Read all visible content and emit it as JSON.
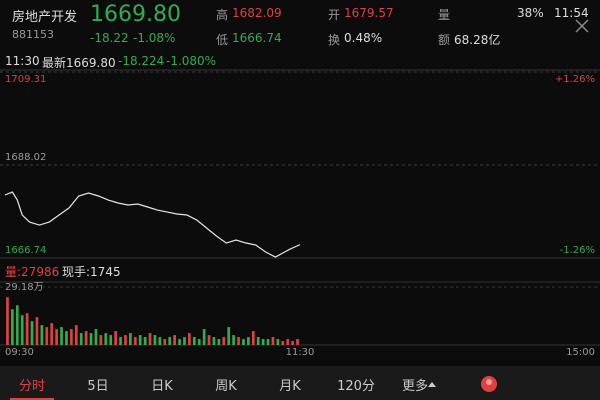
{
  "header": {
    "name": "房地产开发",
    "code": "881153",
    "price": "1669.80",
    "change": "-18.22",
    "change_pct": "-1.08%",
    "high_label": "高",
    "high": "1682.09",
    "low_label": "低",
    "low": "1666.74",
    "open_label": "开",
    "open": "1679.57",
    "turnover_label": "换",
    "turnover": "0.48%",
    "volume_label": "量",
    "amount_label": "额",
    "amount": "68.28亿"
  },
  "status_bar": {
    "battery": "38%",
    "time": "11:54"
  },
  "cursor": {
    "time": "11:30",
    "latest": "最新1669.80",
    "change": "-18.224",
    "change_pct": "-1.080%"
  },
  "volume_info": {
    "volume": "量:27986",
    "hand": "现手:1745"
  },
  "tabs": [
    "分时",
    "5日",
    "日K",
    "周K",
    "月K",
    "120分",
    "更多"
  ],
  "chart_data": [
    {
      "type": "line",
      "x": [
        0,
        3,
        5,
        7,
        10,
        14,
        18,
        22,
        26,
        30,
        34,
        38,
        42,
        46,
        50,
        54,
        58,
        62,
        66,
        70,
        74,
        78,
        82,
        86,
        90,
        94,
        98,
        102,
        106,
        110,
        113,
        116,
        120
      ],
      "series": [
        {
          "color": "#e6e6e6",
          "values": [
            1681.16,
            1681.84,
            1680.01,
            1676.58,
            1674.97,
            1674.29,
            1674.97,
            1676.58,
            1678.18,
            1680.93,
            1681.61,
            1680.93,
            1680.01,
            1679.33,
            1678.87,
            1679.09,
            1678.41,
            1677.72,
            1677.26,
            1676.81,
            1676.58,
            1675.43,
            1673.6,
            1671.77,
            1670.17,
            1670.85,
            1670.17,
            1669.71,
            1668.11,
            1666.96,
            1667.88,
            1668.79,
            1669.8
          ]
        }
      ],
      "xlim": [
        0,
        240
      ],
      "ylim": [
        1666.74,
        1709.31
      ],
      "yticks": [
        1666.74,
        1688.02,
        1709.31
      ],
      "y2lim": [
        -1.26,
        1.26
      ],
      "y2ticks": [
        {
          "value": -1.26,
          "label": "-1.26%"
        },
        {
          "value": 1.26,
          "label": "+1.26%"
        }
      ]
    },
    {
      "type": "bar",
      "x": [
        1,
        3,
        5,
        7,
        9,
        11,
        13,
        15,
        17,
        19,
        21,
        23,
        25,
        27,
        29,
        31,
        33,
        35,
        37,
        39,
        41,
        43,
        45,
        47,
        49,
        51,
        53,
        55,
        57,
        59,
        61,
        63,
        65,
        67,
        69,
        71,
        73,
        75,
        77,
        79,
        81,
        83,
        85,
        87,
        89,
        91,
        93,
        95,
        97,
        99,
        101,
        103,
        105,
        107,
        109,
        111,
        113,
        115,
        117,
        119
      ],
      "values": [
        24,
        18,
        20,
        15,
        16,
        12,
        14,
        10,
        9,
        11,
        8,
        9,
        7,
        8,
        10,
        6,
        7,
        6,
        8,
        5,
        6,
        5,
        7,
        4,
        5,
        6,
        4,
        5,
        4,
        6,
        5,
        4,
        3,
        4,
        5,
        3,
        4,
        6,
        4,
        3,
        8,
        5,
        4,
        3,
        4,
        9,
        5,
        4,
        3,
        4,
        7,
        4,
        3,
        3,
        4,
        3,
        2,
        3,
        2,
        3
      ],
      "directions": [
        "up",
        "down",
        "down",
        "down",
        "up",
        "down",
        "up",
        "down",
        "up",
        "up",
        "up",
        "down",
        "down",
        "up",
        "up",
        "down",
        "up",
        "down",
        "down",
        "up",
        "down",
        "down",
        "up",
        "down",
        "up",
        "down",
        "up",
        "down",
        "down",
        "up",
        "down",
        "down",
        "up",
        "down",
        "up",
        "down",
        "down",
        "up",
        "down",
        "down",
        "down",
        "up",
        "down",
        "down",
        "up",
        "down",
        "down",
        "up",
        "down",
        "down",
        "up",
        "down",
        "down",
        "down",
        "up",
        "down",
        "up",
        "up",
        "up",
        "up"
      ],
      "up_color": "#e04040",
      "down_color": "#2fae4e",
      "xlim": [
        0,
        240
      ],
      "ylim": [
        0,
        29.18
      ],
      "yticks": [
        {
          "value": 29.18,
          "label": "29.18万"
        }
      ],
      "xticks": [
        {
          "value": 0,
          "label": "09:30"
        },
        {
          "value": 120,
          "label": "11:30"
        },
        {
          "value": 240,
          "label": "15:00"
        }
      ]
    }
  ]
}
